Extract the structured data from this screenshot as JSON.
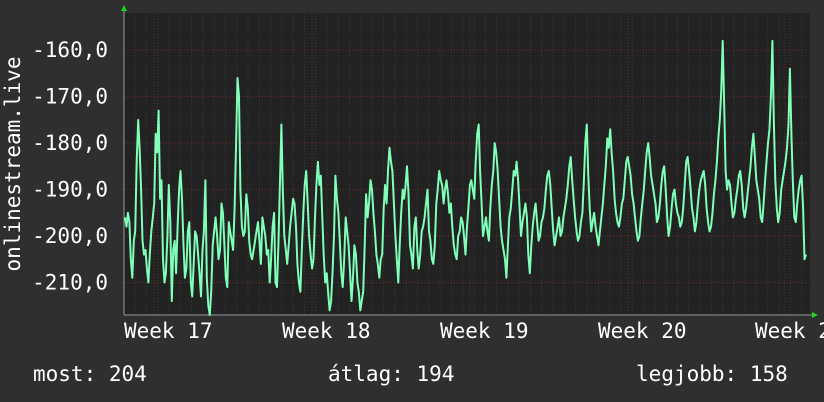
{
  "chart_data": {
    "type": "line",
    "ylabel": "onlinestream.live",
    "ylim": [
      -217,
      -152
    ],
    "y_ticks": [
      -160,
      -170,
      -180,
      -190,
      -200,
      -210
    ],
    "y_tick_labels": [
      "-160,0",
      "-170,0",
      "-180,0",
      "-190,0",
      "-200,0",
      "-210,0"
    ],
    "x_tick_labels": [
      "Week 17",
      "Week 18",
      "Week 19",
      "Week 20",
      "Week 2"
    ],
    "grid": true,
    "series": [
      {
        "color": "#7fffb8",
        "values": [
          -196,
          -198,
          -195,
          -197,
          -205,
          -209,
          -201,
          -199,
          -184,
          -175,
          -181,
          -190,
          -201,
          -204,
          -203,
          -207,
          -210,
          -204,
          -199,
          -196,
          -193,
          -178,
          -182,
          -173,
          -192,
          -188,
          -205,
          -210,
          -208,
          -200,
          -189,
          -197,
          -214,
          -203,
          -201,
          -208,
          -198,
          -190,
          -186,
          -192,
          -202,
          -209,
          -207,
          -199,
          -197,
          -210,
          -213,
          -206,
          -199,
          -200,
          -204,
          -208,
          -213,
          -203,
          -199,
          -188,
          -209,
          -215,
          -217,
          -212,
          -202,
          -199,
          -196,
          -200,
          -205,
          -203,
          -193,
          -195,
          -202,
          -209,
          -211,
          -197,
          -199,
          -201,
          -203,
          -194,
          -180,
          -166,
          -170,
          -190,
          -198,
          -200,
          -199,
          -191,
          -194,
          -201,
          -204,
          -205,
          -203,
          -201,
          -199,
          -197,
          -201,
          -206,
          -196,
          -198,
          -200,
          -204,
          -203,
          -210,
          -205,
          -198,
          -195,
          -210,
          -211,
          -202,
          -189,
          -176,
          -190,
          -200,
          -203,
          -206,
          -202,
          -198,
          -195,
          -192,
          -193,
          -198,
          -206,
          -210,
          -212,
          -203,
          -195,
          -189,
          -186,
          -193,
          -200,
          -204,
          -207,
          -205,
          -196,
          -189,
          -184,
          -189,
          -187,
          -196,
          -204,
          -210,
          -208,
          -212,
          -216,
          -214,
          -208,
          -200,
          -187,
          -192,
          -195,
          -201,
          -208,
          -211,
          -205,
          -196,
          -199,
          -202,
          -208,
          -214,
          -209,
          -202,
          -204,
          -210,
          -212,
          -216,
          -214,
          -212,
          -202,
          -191,
          -196,
          -193,
          -188,
          -190,
          -195,
          -199,
          -204,
          -206,
          -209,
          -205,
          -204,
          -194,
          -189,
          -193,
          -186,
          -181,
          -184,
          -186,
          -193,
          -200,
          -205,
          -210,
          -202,
          -195,
          -190,
          -192,
          -189,
          -185,
          -191,
          -202,
          -204,
          -207,
          -198,
          -196,
          -203,
          -207,
          -204,
          -199,
          -198,
          -196,
          -193,
          -190,
          -199,
          -201,
          -205,
          -206,
          -202,
          -193,
          -190,
          -186,
          -188,
          -189,
          -193,
          -190,
          -188,
          -191,
          -195,
          -193,
          -198,
          -202,
          -204,
          -205,
          -200,
          -199,
          -196,
          -197,
          -200,
          -204,
          -198,
          -194,
          -189,
          -188,
          -190,
          -192,
          -184,
          -178,
          -176,
          -186,
          -193,
          -200,
          -198,
          -196,
          -199,
          -201,
          -194,
          -189,
          -186,
          -180,
          -182,
          -186,
          -192,
          -198,
          -201,
          -203,
          -205,
          -209,
          -202,
          -196,
          -194,
          -190,
          -186,
          -187,
          -184,
          -188,
          -194,
          -200,
          -197,
          -195,
          -193,
          -196,
          -204,
          -208,
          -202,
          -198,
          -195,
          -193,
          -197,
          -201,
          -200,
          -197,
          -196,
          -194,
          -190,
          -187,
          -186,
          -189,
          -194,
          -199,
          -202,
          -200,
          -198,
          -196,
          -200,
          -199,
          -196,
          -194,
          -192,
          -189,
          -185,
          -183,
          -188,
          -192,
          -196,
          -199,
          -201,
          -200,
          -197,
          -195,
          -188,
          -180,
          -176,
          -187,
          -194,
          -199,
          -197,
          -195,
          -198,
          -200,
          -202,
          -199,
          -196,
          -193,
          -189,
          -185,
          -179,
          -181,
          -177,
          -182,
          -186,
          -192,
          -195,
          -197,
          -198,
          -196,
          -193,
          -192,
          -188,
          -184,
          -183,
          -185,
          -187,
          -191,
          -193,
          -196,
          -199,
          -201,
          -200,
          -196,
          -193,
          -190,
          -186,
          -182,
          -180,
          -183,
          -187,
          -189,
          -191,
          -193,
          -197,
          -196,
          -193,
          -189,
          -186,
          -185,
          -190,
          -196,
          -200,
          -198,
          -194,
          -191,
          -190,
          -193,
          -195,
          -196,
          -198,
          -197,
          -194,
          -189,
          -184,
          -183,
          -186,
          -190,
          -194,
          -196,
          -199,
          -197,
          -193,
          -190,
          -188,
          -187,
          -186,
          -189,
          -194,
          -197,
          -199,
          -198,
          -195,
          -191,
          -188,
          -184,
          -179,
          -175,
          -169,
          -158,
          -172,
          -186,
          -190,
          -188,
          -189,
          -193,
          -196,
          -195,
          -192,
          -190,
          -187,
          -186,
          -189,
          -194,
          -196,
          -194,
          -191,
          -188,
          -185,
          -181,
          -178,
          -183,
          -188,
          -190,
          -192,
          -196,
          -197,
          -193,
          -188,
          -184,
          -180,
          -177,
          -170,
          -158,
          -175,
          -188,
          -194,
          -197,
          -195,
          -190,
          -188,
          -186,
          -184,
          -181,
          -176,
          -164,
          -178,
          -188,
          -196,
          -197,
          -193,
          -190,
          -188,
          -187,
          -194,
          -205,
          -204
        ]
      }
    ]
  },
  "footer": {
    "current_label": "most:",
    "current_value": "204",
    "average_label": "átlag:",
    "average_value": "194",
    "best_label": "legjobb:",
    "best_value": "158"
  }
}
